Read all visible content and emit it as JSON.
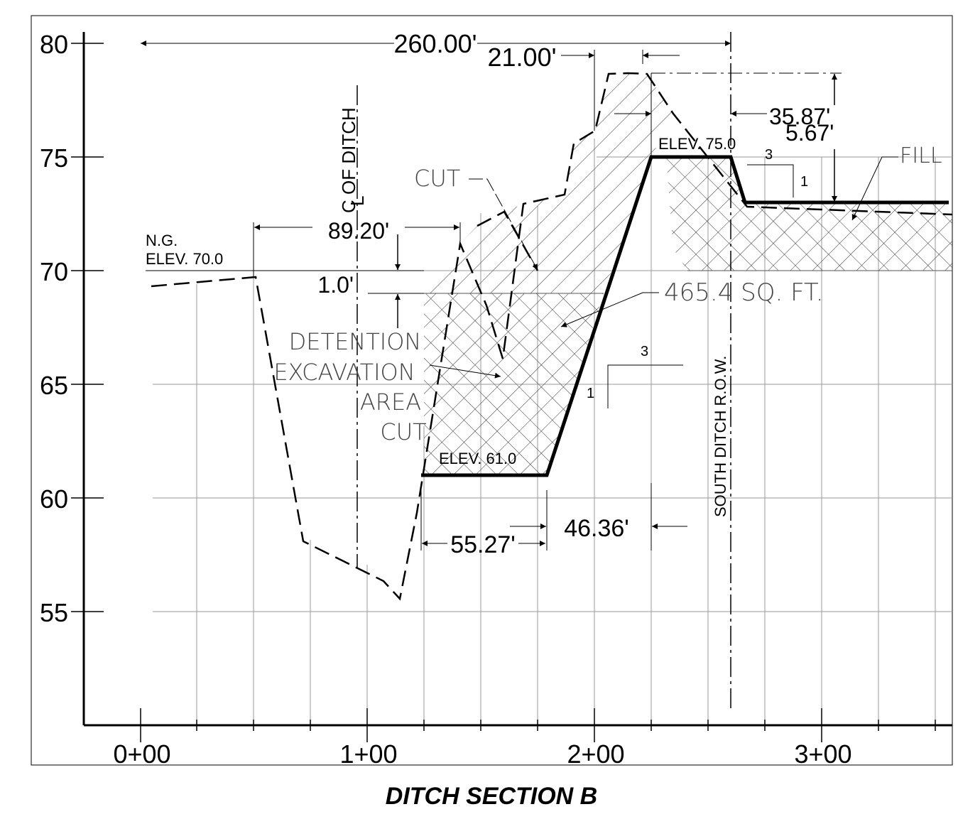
{
  "title": "DITCH SECTION B",
  "axis": {
    "y_ticks": [
      "80",
      "75",
      "70",
      "65",
      "60",
      "55"
    ],
    "x_ticks": [
      "0+00",
      "1+00",
      "2+00",
      "3+00"
    ]
  },
  "labels": {
    "centerline": "C OF DITCH",
    "centerline_mark": "L",
    "row": "SOUTH DITCH R.O.W.",
    "ng_line1": "N.G.",
    "ng_line2": "ELEV. 70.0",
    "elev_top": "ELEV. 75.0",
    "elev_bottom": "ELEV. 61.0",
    "cut": "CUT",
    "fill": "FILL",
    "area": "465.4  SQ.  FT.",
    "detention1": "DETENTION",
    "detention2": "EXCAVATION",
    "detention3": "AREA",
    "detention4": "CUT",
    "slope_top_run": "3",
    "slope_top_rise": "1",
    "slope_mid_run": "3",
    "slope_mid_rise": "1"
  },
  "dimensions": {
    "d260": "260.00'",
    "d21": "21.00'",
    "d3587": "35.87'",
    "d567": "5.67'",
    "d8920": "89.20'",
    "d10": "1.0'",
    "d5527": "55.27'",
    "d4636": "46.36'"
  }
}
